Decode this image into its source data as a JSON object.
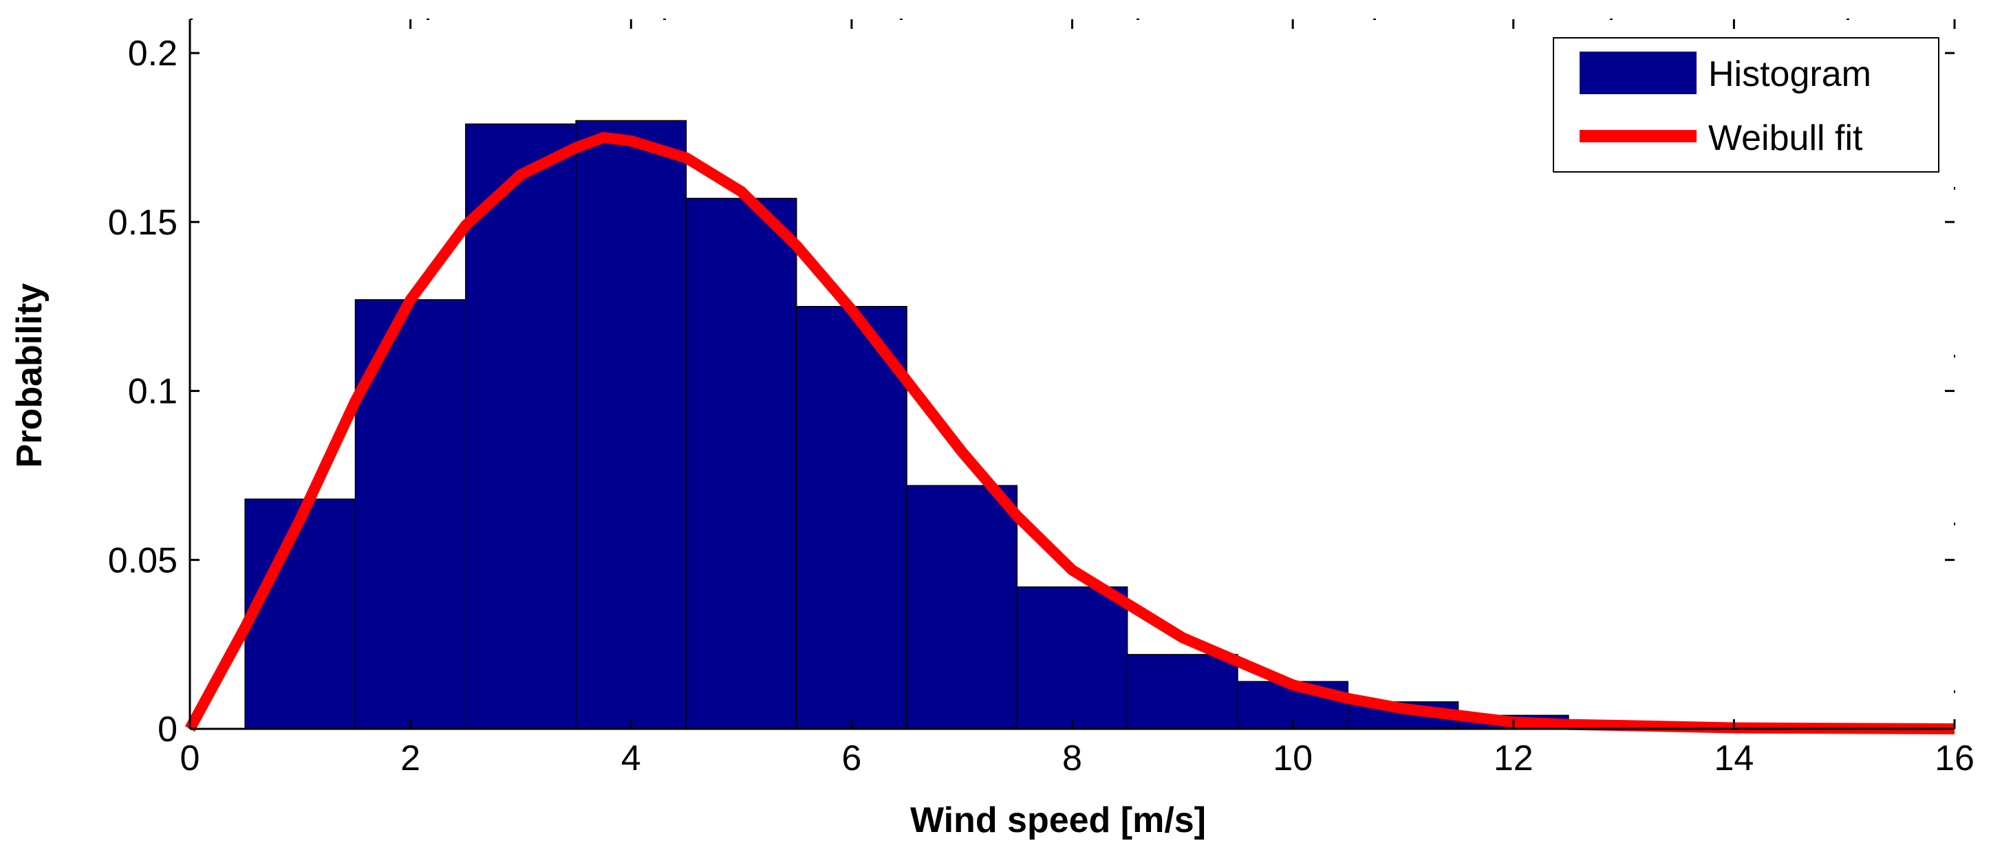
{
  "chart_data": {
    "type": "bar",
    "title": "",
    "xlabel": "Wind speed [m/s]",
    "ylabel": "Probability",
    "xlim": [
      0,
      16
    ],
    "ylim": [
      0,
      0.21
    ],
    "xticks": [
      0,
      2,
      4,
      6,
      8,
      10,
      12,
      14,
      16
    ],
    "xtick_labels": [
      "0",
      "2",
      "4",
      "6",
      "8",
      "10",
      "12",
      "14",
      "16"
    ],
    "yticks": [
      0,
      0.05,
      0.1,
      0.15,
      0.2
    ],
    "ytick_labels": [
      "0",
      "0.05",
      "0.1",
      "0.15",
      "0.2"
    ],
    "grid": false,
    "legend_position": "top-right",
    "series": [
      {
        "name": "Histogram",
        "type": "bar",
        "color": "#00008f",
        "bin_centers": [
          1,
          2,
          3,
          4,
          5,
          6,
          7,
          8,
          9,
          10,
          11,
          12
        ],
        "bin_width": 1,
        "values": [
          0.068,
          0.127,
          0.179,
          0.18,
          0.157,
          0.125,
          0.072,
          0.042,
          0.022,
          0.014,
          0.008,
          0.004
        ]
      },
      {
        "name": "Weibull fit",
        "type": "line",
        "color": "#ff0000",
        "x": [
          0,
          0.5,
          1,
          1.5,
          2,
          2.5,
          3,
          3.5,
          3.75,
          4,
          4.5,
          5,
          5.5,
          6,
          6.5,
          7,
          7.5,
          8,
          8.5,
          9,
          9.5,
          10,
          10.5,
          11,
          11.5,
          12,
          12.5,
          13,
          14,
          16
        ],
        "y": [
          0.0,
          0.03,
          0.062,
          0.097,
          0.127,
          0.149,
          0.164,
          0.172,
          0.175,
          0.174,
          0.169,
          0.159,
          0.143,
          0.124,
          0.103,
          0.082,
          0.063,
          0.047,
          0.037,
          0.027,
          0.02,
          0.013,
          0.009,
          0.006,
          0.004,
          0.002,
          0.0013,
          0.001,
          0.0003,
          0.0
        ]
      }
    ]
  }
}
